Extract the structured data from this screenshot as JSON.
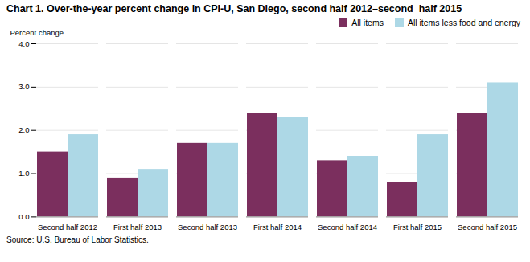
{
  "chart_data": {
    "type": "bar",
    "title": "Chart 1. Over-the-year percent change in CPI-U, San Diego, second half 2012–second  half 2015",
    "ylabel": "Percent change",
    "source": "Source: U.S. Bureau of Labor Statistics.",
    "categories": [
      "Second half 2012",
      "First half 2013",
      "Second half 2013",
      "First half 2014",
      "Second half 2014",
      "First half 2015",
      "Second half 2015"
    ],
    "series": [
      {
        "name": "All items",
        "color": "#7B2F5E",
        "values": [
          1.5,
          0.9,
          1.7,
          2.4,
          1.3,
          0.8,
          2.4
        ]
      },
      {
        "name": "All items less food and energy",
        "color": "#ADD8E6",
        "values": [
          1.9,
          1.1,
          1.7,
          2.3,
          1.4,
          1.9,
          3.1
        ]
      }
    ],
    "ylim": [
      0,
      4.0
    ],
    "yticks": [
      {
        "value": 0,
        "label": "0.0"
      },
      {
        "value": 1,
        "label": "1.0"
      },
      {
        "value": 2,
        "label": "2.0"
      },
      {
        "value": 3,
        "label": "3.0"
      },
      {
        "value": 4,
        "label": "4.0"
      }
    ],
    "grid": true,
    "legend": "upper right"
  }
}
